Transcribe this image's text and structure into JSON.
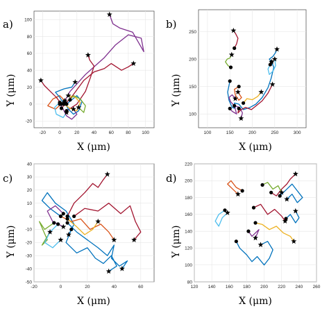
{
  "chart_data": [
    {
      "type": "line",
      "panel_label": "a)",
      "xlabel": "X (μm)",
      "ylabel": "Y (μm)",
      "xlim": [
        -30,
        110
      ],
      "ylim": [
        -28,
        110
      ],
      "xticks": [
        -20,
        0,
        20,
        40,
        60,
        80,
        100
      ],
      "yticks": [
        -20,
        0,
        20,
        40,
        60,
        80,
        100
      ],
      "grid": true,
      "start_marker": "circle",
      "end_marker": "star",
      "series": [
        {
          "color": "#7e2f8e",
          "x": [
            5,
            12,
            30,
            52,
            65,
            80,
            95,
            98,
            85,
            70,
            62,
            58
          ],
          "y": [
            2,
            15,
            35,
            55,
            70,
            82,
            78,
            62,
            85,
            90,
            95,
            106
          ]
        },
        {
          "color": "#a2142f",
          "x": [
            2,
            15,
            28,
            40,
            52,
            60,
            72,
            80,
            86
          ],
          "y": [
            -5,
            10,
            28,
            38,
            42,
            48,
            40,
            44,
            48
          ]
        },
        {
          "color": "#a2142f",
          "x": [
            8,
            20,
            30,
            36,
            40,
            35,
            33
          ],
          "y": [
            -8,
            0,
            15,
            32,
            45,
            52,
            58
          ]
        },
        {
          "color": "#0072bd",
          "x": [
            8,
            14,
            20,
            26,
            22,
            16,
            10,
            6
          ],
          "y": [
            0,
            5,
            10,
            3,
            -8,
            -12,
            -6,
            2
          ]
        },
        {
          "color": "#d95319",
          "x": [
            2,
            -5,
            -14,
            -8,
            0,
            6
          ],
          "y": [
            0,
            -6,
            -2,
            6,
            10,
            4
          ]
        },
        {
          "color": "#edb120",
          "x": [
            5,
            12,
            20,
            24,
            18,
            10
          ],
          "y": [
            0,
            -5,
            -8,
            2,
            8,
            10
          ]
        },
        {
          "color": "#77ac30",
          "x": [
            12,
            16,
            24,
            30,
            28,
            22
          ],
          "y": [
            5,
            10,
            6,
            -2,
            -10,
            -4
          ]
        },
        {
          "color": "#4dbeee",
          "x": [
            0,
            -6,
            -4,
            4,
            8
          ],
          "y": [
            2,
            -4,
            -12,
            -16,
            -10
          ]
        },
        {
          "color": "#a2142f",
          "x": [
            2,
            -4,
            -12,
            -18,
            -22
          ],
          "y": [
            0,
            8,
            16,
            22,
            28
          ]
        },
        {
          "color": "#7e2f8e",
          "x": [
            0,
            4,
            8,
            14,
            20,
            16
          ],
          "y": [
            0,
            -6,
            -14,
            -18,
            -12,
            -6
          ]
        },
        {
          "color": "#0072bd",
          "x": [
            5,
            0,
            -5,
            5,
            14,
            18
          ],
          "y": [
            0,
            8,
            14,
            18,
            20,
            26
          ]
        }
      ]
    },
    {
      "type": "line",
      "panel_label": "b)",
      "xlabel": "X (μm)",
      "ylabel": "Y (μm)",
      "xlim": [
        80,
        320
      ],
      "ylim": [
        75,
        290
      ],
      "xticks": [
        100,
        150,
        200,
        250,
        300
      ],
      "yticks": [
        100,
        150,
        200,
        250
      ],
      "grid": true,
      "start_marker": "circle",
      "end_marker": "star",
      "series": [
        {
          "color": "#0072bd",
          "x": [
            150,
            145,
            148,
            155,
            162,
            160,
            170,
            180,
            195,
            208,
            222,
            235,
            242,
            248,
            243
          ],
          "y": [
            160,
            140,
            125,
            112,
            110,
            120,
            118,
            108,
            112,
            118,
            130,
            148,
            165,
            185,
            195
          ]
        },
        {
          "color": "#7e2f8e",
          "x": [
            150,
            155,
            165,
            160,
            172,
            178,
            175
          ],
          "y": [
            110,
            105,
            100,
            115,
            112,
            102,
            92
          ]
        },
        {
          "color": "#a2142f",
          "x": [
            170,
            168,
            175,
            185,
            198,
            210,
            222,
            235,
            245
          ],
          "y": [
            110,
            102,
            108,
            112,
            108,
            116,
            124,
            138,
            154
          ]
        },
        {
          "color": "#77ac30",
          "x": [
            152,
            146,
            140,
            144,
            150,
            154
          ],
          "y": [
            185,
            188,
            195,
            200,
            202,
            208
          ]
        },
        {
          "color": "#a2142f",
          "x": [
            160,
            165,
            168,
            163,
            158
          ],
          "y": [
            220,
            228,
            238,
            246,
            252
          ]
        },
        {
          "color": "#d95319",
          "x": [
            170,
            160,
            162,
            170,
            176,
            168
          ],
          "y": [
            150,
            145,
            135,
            125,
            130,
            140
          ]
        },
        {
          "color": "#4dbeee",
          "x": [
            240,
            235,
            238,
            246,
            252,
            250
          ],
          "y": [
            190,
            182,
            172,
            178,
            188,
            200
          ]
        },
        {
          "color": "#edb120",
          "x": [
            180,
            188,
            200,
            212,
            220
          ],
          "y": [
            120,
            128,
            126,
            132,
            140
          ]
        },
        {
          "color": "#0072bd",
          "x": [
            243,
            238,
            246,
            252,
            255
          ],
          "y": [
            195,
            200,
            205,
            212,
            218
          ]
        },
        {
          "color": "#7e2f8e",
          "x": [
            160,
            152,
            148,
            155,
            162
          ],
          "y": [
            115,
            122,
            130,
            135,
            128
          ]
        }
      ]
    },
    {
      "type": "line",
      "panel_label": "c)",
      "xlabel": "X (μm)",
      "ylabel": "Y (μm)",
      "xlim": [
        -20,
        70
      ],
      "ylim": [
        -50,
        40
      ],
      "xticks": [
        -20,
        0,
        20,
        40,
        60
      ],
      "yticks": [
        -50,
        -40,
        -30,
        -20,
        -10,
        0,
        10,
        20,
        30,
        40
      ],
      "grid": true,
      "start_marker": "circle",
      "end_marker": "star",
      "series": [
        {
          "color": "#0072bd",
          "x": [
            5,
            12,
            20,
            28,
            35,
            40,
            38,
            44,
            50,
            46
          ],
          "y": [
            -5,
            -12,
            -18,
            -24,
            -30,
            -22,
            -32,
            -38,
            -34,
            -40
          ]
        },
        {
          "color": "#0072bd",
          "x": [
            0,
            -8,
            -14,
            -10,
            -4,
            4,
            10,
            6
          ],
          "y": [
            0,
            6,
            12,
            18,
            10,
            4,
            -6,
            -14
          ]
        },
        {
          "color": "#a2142f",
          "x": [
            10,
            18,
            28,
            36,
            45,
            52,
            56,
            60,
            55
          ],
          "y": [
            0,
            6,
            4,
            10,
            2,
            8,
            -4,
            -12,
            -18
          ]
        },
        {
          "color": "#a2142f",
          "x": [
            5,
            10,
            18,
            24,
            28,
            32,
            35
          ],
          "y": [
            0,
            10,
            18,
            25,
            22,
            28,
            32
          ]
        },
        {
          "color": "#77ac30",
          "x": [
            -5,
            -12,
            -16,
            -10,
            -14,
            -8
          ],
          "y": [
            -5,
            -10,
            -4,
            -18,
            -22,
            -12
          ]
        },
        {
          "color": "#d95319",
          "x": [
            0,
            8,
            15,
            22,
            30,
            36,
            40
          ],
          "y": [
            0,
            -4,
            -2,
            -10,
            -6,
            -12,
            -18
          ]
        },
        {
          "color": "#edb120",
          "x": [
            5,
            12,
            18,
            24,
            28
          ],
          "y": [
            -2,
            -8,
            -14,
            -10,
            -4
          ]
        },
        {
          "color": "#7e2f8e",
          "x": [
            2,
            -4,
            -10,
            -6,
            2
          ],
          "y": [
            2,
            8,
            4,
            -4,
            -8
          ]
        },
        {
          "color": "#4dbeee",
          "x": [
            -2,
            -8,
            -12,
            -6,
            0
          ],
          "y": [
            -6,
            -12,
            -20,
            -24,
            -18
          ]
        },
        {
          "color": "#0072bd",
          "x": [
            8,
            4,
            12,
            20,
            26,
            32,
            38,
            42,
            36
          ],
          "y": [
            -10,
            -20,
            -28,
            -24,
            -32,
            -36,
            -30,
            -38,
            -42
          ]
        }
      ]
    },
    {
      "type": "line",
      "panel_label": "d)",
      "xlabel": "X (μm)",
      "ylabel": "Y (μm)",
      "xlim": [
        120,
        260
      ],
      "ylim": [
        80,
        220
      ],
      "xticks": [
        120,
        140,
        160,
        180,
        200,
        220,
        240,
        260
      ],
      "yticks": [
        80,
        100,
        120,
        140,
        160,
        180,
        200,
        220
      ],
      "grid": true,
      "start_marker": "circle",
      "end_marker": "star",
      "series": [
        {
          "color": "#0072bd",
          "x": [
            168,
            172,
            180,
            186,
            192,
            200,
            206,
            210,
            204,
            196
          ],
          "y": [
            128,
            120,
            112,
            104,
            110,
            100,
            108,
            118,
            128,
            124
          ]
        },
        {
          "color": "#0072bd",
          "x": [
            218,
            226,
            232,
            238,
            244,
            238,
            232,
            226
          ],
          "y": [
            182,
            190,
            196,
            188,
            180,
            174,
            184,
            178
          ]
        },
        {
          "color": "#d95319",
          "x": [
            175,
            168,
            162,
            158,
            164,
            170
          ],
          "y": [
            188,
            192,
            200,
            196,
            190,
            184
          ]
        },
        {
          "color": "#edb120",
          "x": [
            190,
            198,
            206,
            214,
            222,
            230,
            234
          ],
          "y": [
            150,
            148,
            142,
            146,
            138,
            134,
            128
          ]
        },
        {
          "color": "#a2142f",
          "x": [
            208,
            214,
            220,
            226,
            230,
            236
          ],
          "y": [
            186,
            182,
            190,
            196,
            202,
            208
          ]
        },
        {
          "color": "#4dbeee",
          "x": [
            155,
            148,
            144,
            148,
            152,
            158
          ],
          "y": [
            165,
            160,
            152,
            146,
            156,
            162
          ]
        },
        {
          "color": "#7e2f8e",
          "x": [
            182,
            186,
            190,
            194,
            190
          ],
          "y": [
            140,
            134,
            138,
            142,
            132
          ]
        },
        {
          "color": "#a2142f",
          "x": [
            188,
            196,
            204,
            212,
            220,
            224
          ],
          "y": [
            168,
            172,
            160,
            166,
            158,
            152
          ]
        },
        {
          "color": "#77ac30",
          "x": [
            198,
            204,
            210,
            216,
            220
          ],
          "y": [
            195,
            198,
            190,
            194,
            186
          ]
        },
        {
          "color": "#0072bd",
          "x": [
            225,
            230,
            236,
            240,
            236
          ],
          "y": [
            155,
            160,
            150,
            156,
            164
          ]
        }
      ]
    }
  ]
}
